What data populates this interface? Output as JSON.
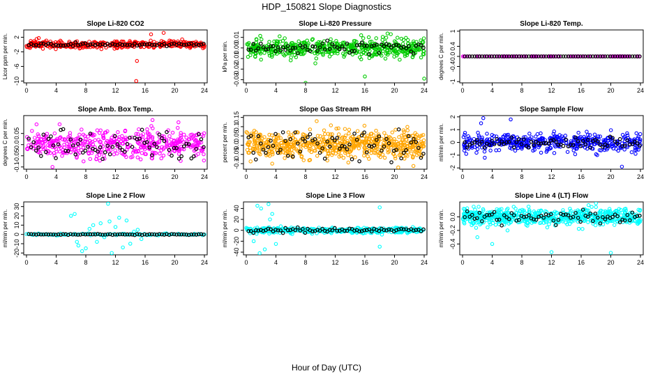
{
  "figure": {
    "title": "HDP_150821  Slope Diagnostics",
    "xlabel": "Hour of Day (UTC)",
    "overlay_color": "#000000"
  },
  "chart_data": [
    {
      "type": "scatter",
      "title": "Slope Li-820 CO2",
      "ylabel": "Licor ppm per min.",
      "xlim": [
        0,
        24
      ],
      "ylim": [
        -10.5,
        4
      ],
      "x_ticks": [
        0,
        4,
        8,
        12,
        16,
        20,
        24
      ],
      "y_ticks": [
        -10,
        -6,
        -2,
        2
      ],
      "color": "#ff0000",
      "profile": {
        "center": 0,
        "spread": 0.5,
        "overlay_spread": 0.2,
        "density": 420,
        "seed": 11,
        "outliers": [
          [
            14.8,
            -10
          ],
          [
            14.9,
            -4.5
          ],
          [
            18.5,
            3.2
          ],
          [
            16.8,
            2.8
          ]
        ]
      }
    },
    {
      "type": "scatter",
      "title": "Slope Li-820 Pressure",
      "ylabel": "kPa per min.",
      "xlim": [
        0,
        24
      ],
      "ylim": [
        -0.033,
        0.017
      ],
      "x_ticks": [
        0,
        4,
        8,
        12,
        16,
        20,
        24
      ],
      "y_ticks": [
        -0.03,
        -0.02,
        -0.01,
        0.0,
        0.01
      ],
      "color": "#00cc00",
      "profile": {
        "center": 0.0,
        "spread": 0.004,
        "overlay_spread": 0.003,
        "density": 520,
        "seed": 23,
        "outliers": [
          [
            8,
            -0.033
          ],
          [
            24,
            -0.029
          ],
          [
            16,
            -0.027
          ],
          [
            19.5,
            0.013
          ],
          [
            15.5,
            0.012
          ],
          [
            4.5,
            0.011
          ]
        ]
      }
    },
    {
      "type": "scatter",
      "title": "Slope Li-820 Temp.",
      "ylabel": "degrees C per min.",
      "xlim": [
        0,
        24
      ],
      "ylim": [
        -1.05,
        1.05
      ],
      "x_ticks": [
        0,
        4,
        8,
        12,
        16,
        20,
        24
      ],
      "y_ticks": [
        -1.0,
        -0.4,
        0.0,
        0.4,
        1.0
      ],
      "color": "#ff00ff",
      "profile": {
        "center": 0.0,
        "spread": 0.0,
        "overlay_spread": 0.0,
        "density": 100,
        "seed": 5,
        "outliers": []
      }
    },
    {
      "type": "scatter",
      "title": "Slope Amb. Box Temp.",
      "ylabel": "degrees C per min.",
      "xlim": [
        0,
        24
      ],
      "ylim": [
        -0.11,
        0.13
      ],
      "x_ticks": [
        0,
        4,
        8,
        12,
        16,
        20,
        24
      ],
      "y_ticks": [
        -0.1,
        -0.05,
        0.0,
        0.05
      ],
      "color": "#ff00ff",
      "profile": {
        "center": 0.0,
        "spread": 0.03,
        "overlay_spread": 0.03,
        "density": 460,
        "seed": 37,
        "outliers": [
          [
            3.5,
            -0.1
          ],
          [
            17,
            0.11
          ],
          [
            20.5,
            0.1
          ]
        ]
      }
    },
    {
      "type": "scatter",
      "title": "Slope Gas Stream RH",
      "ylabel": "percent per min.",
      "xlim": [
        0,
        24
      ],
      "ylim": [
        -0.13,
        0.16
      ],
      "x_ticks": [
        0,
        4,
        8,
        12,
        16,
        20,
        24
      ],
      "y_ticks": [
        -0.1,
        -0.05,
        0.0,
        0.05,
        0.1,
        0.15
      ],
      "color": "#ffa500",
      "profile": {
        "center": 0.0,
        "spread": 0.035,
        "overlay_spread": 0.04,
        "density": 620,
        "seed": 41,
        "outliers": [
          [
            9.5,
            0.13
          ],
          [
            20.5,
            -0.12
          ],
          [
            3.5,
            -0.1
          ],
          [
            10.5,
            0.08
          ]
        ]
      }
    },
    {
      "type": "scatter",
      "title": "Slope Sample Flow",
      "ylabel": "ml/min per min.",
      "xlim": [
        0,
        24
      ],
      "ylim": [
        -2.1,
        2.1
      ],
      "x_ticks": [
        0,
        4,
        8,
        12,
        16,
        20,
        24
      ],
      "y_ticks": [
        -2,
        -1,
        0,
        1,
        2
      ],
      "color": "#0000ff",
      "profile": {
        "center": 0.0,
        "spread": 0.35,
        "overlay_spread": 0.25,
        "density": 440,
        "seed": 53,
        "outliers": [
          [
            2.5,
            1.5
          ],
          [
            3,
            -1.2
          ],
          [
            6.5,
            1.8
          ],
          [
            21.5,
            -1.9
          ],
          [
            2.8,
            1.9
          ],
          [
            0.5,
            -0.9
          ]
        ]
      }
    },
    {
      "type": "scatter",
      "title": "Slope Line 2 Flow",
      "ylabel": "ml/min per min.",
      "xlim": [
        0,
        24
      ],
      "ylim": [
        -22,
        35
      ],
      "x_ticks": [
        0,
        4,
        8,
        12,
        16,
        20,
        24
      ],
      "y_ticks": [
        -20,
        -10,
        0,
        10,
        20,
        30
      ],
      "color": "#00ffff",
      "profile": {
        "center": 0.0,
        "spread": 0.6,
        "overlay_spread": 0.3,
        "density": 90,
        "seed": 61,
        "regular": true,
        "outliers": [
          [
            6,
            20
          ],
          [
            6.5,
            22
          ],
          [
            7,
            -12
          ],
          [
            7.5,
            -18
          ],
          [
            8,
            -15
          ],
          [
            9,
            10
          ],
          [
            9.5,
            -8
          ],
          [
            10,
            12
          ],
          [
            11,
            33
          ],
          [
            11.5,
            -20
          ],
          [
            12,
            8
          ],
          [
            13,
            -14
          ],
          [
            13.5,
            15
          ],
          [
            14,
            -10
          ],
          [
            15,
            5
          ],
          [
            15.5,
            -5
          ],
          [
            12.5,
            18
          ],
          [
            10.5,
            -3
          ],
          [
            8.5,
            6
          ],
          [
            14.5,
            3
          ],
          [
            6.8,
            -8
          ],
          [
            11.2,
            14
          ]
        ]
      }
    },
    {
      "type": "scatter",
      "title": "Slope Line 3 Flow",
      "ylabel": "ml/min per min.",
      "xlim": [
        0,
        24
      ],
      "ylim": [
        -45,
        52
      ],
      "x_ticks": [
        0,
        4,
        8,
        12,
        16,
        20,
        24
      ],
      "y_ticks": [
        -40,
        -20,
        0,
        20,
        40
      ],
      "color": "#00ffff",
      "profile": {
        "center": 0.0,
        "spread": 2.5,
        "overlay_spread": 2.0,
        "density": 420,
        "seed": 71,
        "outliers": [
          [
            1.5,
            45
          ],
          [
            2,
            40
          ],
          [
            3,
            48
          ],
          [
            2.5,
            -35
          ],
          [
            1,
            -20
          ],
          [
            3.5,
            30
          ],
          [
            4,
            -25
          ],
          [
            18,
            42
          ],
          [
            18,
            -30
          ],
          [
            1.8,
            -42
          ],
          [
            3.2,
            20
          ]
        ]
      }
    },
    {
      "type": "scatter",
      "title": "Slope Line 4 (LT) Flow",
      "ylabel": "ml/min per min.",
      "xlim": [
        0,
        24
      ],
      "ylim": [
        -0.56,
        0.22
      ],
      "x_ticks": [
        0,
        4,
        8,
        12,
        16,
        20,
        24
      ],
      "y_ticks": [
        -0.4,
        -0.2,
        0.0
      ],
      "color": "#00ffff",
      "profile": {
        "center": 0.0,
        "spread": 0.06,
        "overlay_spread": 0.05,
        "density": 620,
        "seed": 83,
        "outliers": [
          [
            12,
            -0.52
          ],
          [
            20,
            -0.53
          ],
          [
            4,
            -0.4
          ],
          [
            2,
            -0.3
          ],
          [
            18,
            0.2
          ],
          [
            1.5,
            0.15
          ],
          [
            22,
            0.12
          ]
        ]
      }
    }
  ]
}
